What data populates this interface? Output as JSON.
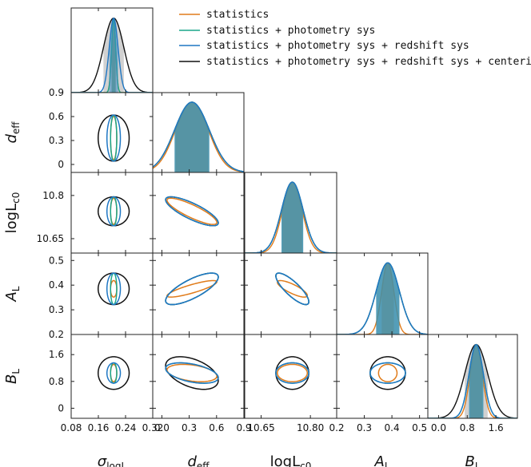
{
  "chart_data": {
    "type": "corner",
    "title": "",
    "parameters": [
      {
        "key": "sigma",
        "label_main": "σ",
        "label_sub": "logL",
        "range": [
          0.08,
          0.32
        ],
        "ticks": [
          0.08,
          0.16,
          0.24,
          0.32
        ],
        "tick_labels": [
          "0.08",
          "0.16",
          "0.24",
          "0.32"
        ]
      },
      {
        "key": "deff",
        "label_main": "d",
        "label_sub": "eff",
        "range": [
          -0.1,
          0.9
        ],
        "ticks": [
          0,
          0.3,
          0.6,
          0.9
        ],
        "tick_labels": [
          "0.0",
          "0.3",
          "0.6",
          "0.9"
        ]
      },
      {
        "key": "logLc0",
        "label_main": "logL",
        "label_sub": "c0",
        "range": [
          10.6,
          10.88
        ],
        "ticks": [
          10.65,
          10.8
        ],
        "tick_labels": [
          "10.65",
          "10.80"
        ]
      },
      {
        "key": "AL",
        "label_main": "A",
        "label_sub": "L",
        "range": [
          0.2,
          0.53
        ],
        "ticks": [
          0.2,
          0.3,
          0.4,
          0.5
        ],
        "tick_labels": [
          "0.2",
          "0.3",
          "0.4",
          "0.5"
        ]
      },
      {
        "key": "BL",
        "label_main": "B",
        "label_sub": "L",
        "range": [
          -0.3,
          2.2
        ],
        "ticks": [
          0,
          0.8,
          1.6
        ],
        "tick_labels": [
          "0.0",
          "0.8",
          "1.6"
        ]
      }
    ],
    "y_tick_labels": {
      "deff": [
        "0",
        "0.3",
        "0.6",
        "0.9"
      ],
      "logLc0": [
        "10.65",
        "10.8"
      ],
      "AL": [
        "0.2",
        "0.3",
        "0.4",
        "0.5"
      ],
      "BL": [
        "0",
        "0.8",
        "1.6"
      ]
    },
    "series": [
      {
        "name": "statistics",
        "color": "#e07b1a",
        "fill": "#e07b1a",
        "center": {
          "sigma": 0.205,
          "deff": 0.33,
          "logLc0": 10.745,
          "AL": 0.385,
          "BL": 1.05
        },
        "sd": {
          "sigma": 0.006,
          "deff": 0.18,
          "logLc0": 0.03,
          "AL": 0.022,
          "BL": 0.17
        },
        "corr": {
          "deff|logLc0": -0.85,
          "deff|AL": 0.85,
          "logLc0|AL": -0.8,
          "deff|BL": -0.35
        }
      },
      {
        "name": "statistics + photometry sys",
        "color": "#1aa58a",
        "fill": "#2a9a86",
        "center": {
          "sigma": 0.205,
          "deff": 0.33,
          "logLc0": 10.745,
          "AL": 0.385,
          "BL": 1.05
        },
        "sd": {
          "sigma": 0.006,
          "deff": 0.19,
          "logLc0": 0.033,
          "AL": 0.042,
          "BL": 0.2
        },
        "corr": {
          "deff|logLc0": -0.8,
          "deff|AL": 0.75,
          "logLc0|AL": -0.82,
          "deff|BL": -0.45
        }
      },
      {
        "name": "statistics + photometry sys + redshift sys",
        "color": "#1f77c4",
        "fill": "#3b8cc6",
        "center": {
          "sigma": 0.205,
          "deff": 0.33,
          "logLc0": 10.745,
          "AL": 0.385,
          "BL": 1.05
        },
        "sd": {
          "sigma": 0.013,
          "deff": 0.19,
          "logLc0": 0.033,
          "AL": 0.042,
          "BL": 0.2
        },
        "corr": {
          "deff|logLc0": -0.8,
          "deff|AL": 0.75,
          "logLc0|AL": -0.82,
          "deff|BL": -0.45
        }
      },
      {
        "name": "statistics + photometry sys + redshift sys + centering sys",
        "color": "#111111",
        "fill": "#999999",
        "center": {
          "sigma": 0.205,
          "deff": 0.33,
          "logLc0": 10.745,
          "AL": 0.385,
          "BL": 1.05
        },
        "sd": {
          "sigma": 0.03,
          "deff": 0.19,
          "logLc0": 0.033,
          "AL": 0.042,
          "BL": 0.32
        },
        "corr": {
          "deff|logLc0": -0.8,
          "deff|AL": 0.75,
          "logLc0|AL": -0.82,
          "deff|BL": -0.45
        }
      }
    ],
    "legend_position": "top-right"
  }
}
